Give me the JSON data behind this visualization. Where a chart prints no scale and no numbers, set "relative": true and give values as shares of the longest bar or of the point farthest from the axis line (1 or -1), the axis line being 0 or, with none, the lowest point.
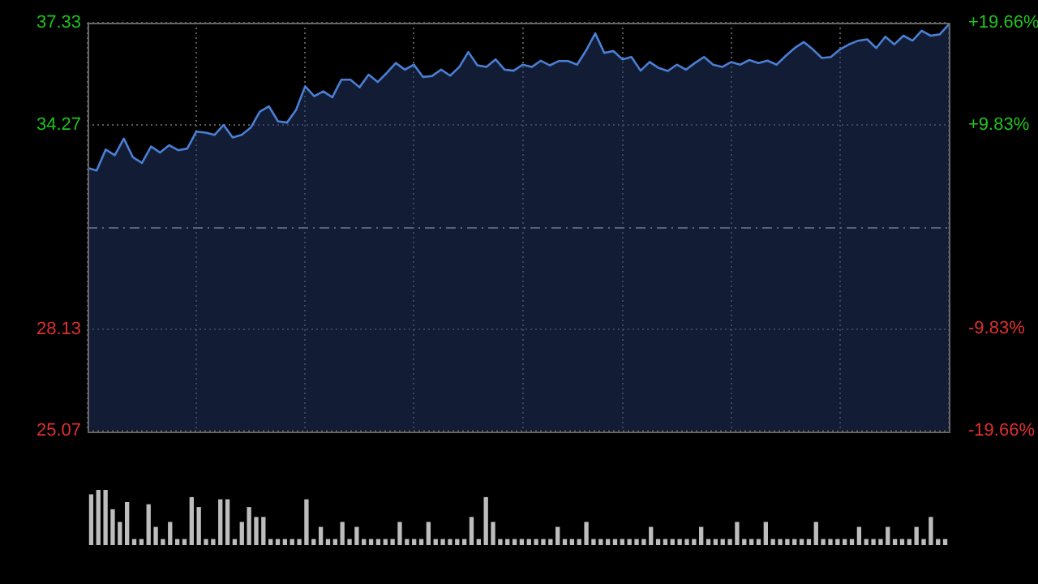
{
  "chart_data": [
    {
      "type": "area",
      "categories": [
        null,
        null,
        null,
        null,
        null,
        null,
        null,
        null,
        null,
        null,
        null,
        null,
        null,
        null,
        null,
        null,
        null,
        null,
        null,
        null,
        null,
        null,
        null,
        null,
        null,
        null,
        null,
        null,
        null,
        null,
        null,
        null,
        null,
        null,
        null,
        null,
        null,
        null,
        null,
        null,
        null,
        null,
        null,
        null,
        null,
        null,
        null,
        null,
        null,
        null,
        null,
        null,
        null,
        null,
        null,
        null,
        null,
        null,
        null,
        null,
        null,
        null,
        null,
        null,
        null,
        null,
        null,
        null,
        null,
        null,
        null,
        null,
        null,
        null,
        null,
        null,
        null,
        null,
        null,
        null,
        null,
        null,
        null,
        null,
        null,
        null,
        null,
        null,
        null,
        null,
        null,
        null,
        null,
        null,
        null,
        null
      ],
      "series": [
        {
          "color": "#4a7fd4",
          "values": [
            32.97,
            32.89,
            33.52,
            33.35,
            33.85,
            33.29,
            33.12,
            33.61,
            33.43,
            33.65,
            33.5,
            33.55,
            34.06,
            34.03,
            33.96,
            34.26,
            33.88,
            33.96,
            34.18,
            34.66,
            34.82,
            34.37,
            34.33,
            34.71,
            35.42,
            35.12,
            35.27,
            35.09,
            35.62,
            35.62,
            35.39,
            35.77,
            35.55,
            35.82,
            36.12,
            35.92,
            36.07,
            35.7,
            35.73,
            35.92,
            35.74,
            36.0,
            36.45,
            36.05,
            36.0,
            36.23,
            35.92,
            35.89,
            36.07,
            36.0,
            36.19,
            36.05,
            36.18,
            36.18,
            36.07,
            36.5,
            37.01,
            36.42,
            36.48,
            36.23,
            36.3,
            35.89,
            36.15,
            35.97,
            35.88,
            36.07,
            35.92,
            36.12,
            36.3,
            36.07,
            36.0,
            36.15,
            36.07,
            36.21,
            36.12,
            36.19,
            36.07,
            36.33,
            36.57,
            36.75,
            36.53,
            36.27,
            36.3,
            36.53,
            36.68,
            36.79,
            36.83,
            36.57,
            36.91,
            36.68,
            36.94,
            36.79,
            37.09,
            36.94,
            36.98,
            37.28
          ]
        }
      ],
      "ylim": [
        25.07,
        37.33
      ],
      "yticks": [
        25.07,
        28.13,
        34.27,
        37.33
      ],
      "y2lim": [
        -19.66,
        19.66
      ],
      "y2ticks": [
        {
          "value": -19.66,
          "label": "-19.66%"
        },
        {
          "value": -9.83,
          "label": "-9.83%"
        },
        {
          "value": 9.83,
          "label": "+9.83%"
        },
        {
          "value": 19.66,
          "label": "+19.66%"
        }
      ],
      "ref_lines": [
        {
          "axis": "y",
          "value": 31.2,
          "color": "#9a9a9a",
          "line_style": "dashed"
        }
      ],
      "grid": true,
      "legend": false
    },
    {
      "type": "bar",
      "relative": true,
      "tick_labels": false,
      "categories": [
        null,
        null,
        null,
        null,
        null,
        null,
        null,
        null,
        null,
        null,
        null,
        null,
        null,
        null,
        null,
        null,
        null,
        null,
        null,
        null,
        null,
        null,
        null,
        null,
        null,
        null,
        null,
        null,
        null,
        null,
        null,
        null,
        null,
        null,
        null,
        null,
        null,
        null,
        null,
        null,
        null,
        null,
        null,
        null,
        null,
        null,
        null,
        null,
        null,
        null,
        null,
        null,
        null,
        null,
        null,
        null,
        null,
        null,
        null,
        null,
        null,
        null,
        null,
        null,
        null,
        null,
        null,
        null,
        null,
        null,
        null,
        null,
        null,
        null,
        null,
        null,
        null,
        null,
        null,
        null,
        null,
        null,
        null,
        null,
        null,
        null,
        null,
        null,
        null,
        null,
        null,
        null,
        null,
        null,
        null,
        null,
        null,
        null,
        null,
        null,
        null,
        null,
        null,
        null,
        null,
        null,
        null,
        null,
        null,
        null,
        null,
        null,
        null,
        null,
        null,
        null,
        null,
        null,
        null,
        null
      ],
      "series": [
        {
          "color": "#bdbdbd",
          "values": [
            0.91,
            1,
            1,
            0.64,
            0.41,
            0.77,
            0.1,
            0.1,
            0.73,
            0.32,
            0.1,
            0.41,
            0.1,
            0.1,
            0.86,
            0.68,
            0.1,
            0.1,
            0.82,
            0.82,
            0.1,
            0.41,
            0.68,
            0.5,
            0.5,
            0.1,
            0.1,
            0.1,
            0.1,
            0.1,
            0.82,
            0.1,
            0.32,
            0.1,
            0.1,
            0.41,
            0.1,
            0.32,
            0.1,
            0.1,
            0.1,
            0.1,
            0.1,
            0.41,
            0.1,
            0.1,
            0.1,
            0.41,
            0.1,
            0.1,
            0.1,
            0.1,
            0.1,
            0.5,
            0.1,
            0.86,
            0.41,
            0.1,
            0.1,
            0.1,
            0.1,
            0.1,
            0.1,
            0.1,
            0.1,
            0.32,
            0.1,
            0.1,
            0.1,
            0.41,
            0.1,
            0.1,
            0.1,
            0.1,
            0.1,
            0.1,
            0.1,
            0.1,
            0.32,
            0.1,
            0.1,
            0.1,
            0.1,
            0.1,
            0.1,
            0.32,
            0.1,
            0.1,
            0.1,
            0.1,
            0.41,
            0.1,
            0.1,
            0.1,
            0.41,
            0.1,
            0.1,
            0.1,
            0.1,
            0.1,
            0.1,
            0.41,
            0.1,
            0.1,
            0.1,
            0.1,
            0.1,
            0.32,
            0.1,
            0.1,
            0.1,
            0.32,
            0.1,
            0.1,
            0.1,
            0.32,
            0.1,
            0.5,
            0.1,
            0.1
          ]
        }
      ],
      "grid": false,
      "legend": false
    }
  ]
}
